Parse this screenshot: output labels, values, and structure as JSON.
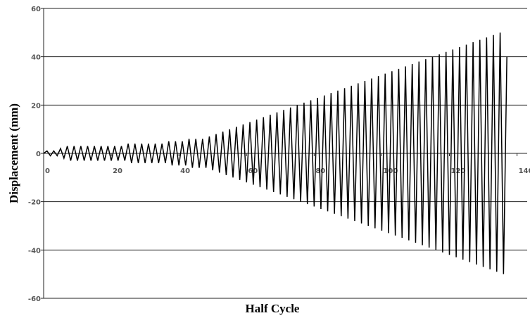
{
  "chart_data": {
    "type": "line",
    "xlabel": "Half Cycle",
    "ylabel": "Displacement (mm)",
    "x": [
      0,
      1,
      2,
      3,
      4,
      5,
      6,
      7,
      8,
      9,
      10,
      11,
      12,
      13,
      14,
      15,
      16,
      17,
      18,
      19,
      20,
      21,
      22,
      23,
      24,
      25,
      26,
      27,
      28,
      29,
      30,
      31,
      32,
      33,
      34,
      35,
      36,
      37,
      38,
      39,
      40,
      41,
      42,
      43,
      44,
      45,
      46,
      47,
      48,
      49,
      50,
      51,
      52,
      53,
      54,
      55,
      56,
      57,
      58,
      59,
      60,
      61,
      62,
      63,
      64,
      65,
      66,
      67,
      68,
      69,
      70,
      71,
      72,
      73,
      74,
      75,
      76,
      77,
      78,
      79,
      80,
      81,
      82,
      83,
      84,
      85,
      86,
      87,
      88,
      89,
      90,
      91,
      92,
      93,
      94,
      95,
      96,
      97,
      98,
      99,
      100,
      101,
      102,
      103,
      104,
      105,
      106,
      107,
      108,
      109,
      110,
      111,
      112,
      113,
      114,
      115,
      116,
      117,
      118,
      119,
      120,
      121,
      122,
      123,
      124,
      125,
      126,
      127,
      128,
      129,
      130,
      131,
      132,
      133,
      134,
      135,
      136,
      137
    ],
    "values": [
      0,
      1,
      -1,
      1,
      -1,
      2,
      -2,
      3,
      -3,
      3,
      -3,
      3,
      -3,
      3,
      -3,
      3,
      -3,
      3,
      -3,
      3,
      -3,
      3,
      -3,
      3,
      -3,
      4,
      -4,
      4,
      -4,
      4,
      -4,
      4,
      -4,
      4,
      -4,
      4,
      -4,
      5,
      -5,
      5,
      -5,
      5,
      -5,
      6,
      -6,
      6,
      -6,
      6,
      -6,
      7,
      -7,
      8,
      -8,
      9,
      -9,
      10,
      -10,
      11,
      -11,
      12,
      -12,
      13,
      -13,
      14,
      -14,
      15,
      -15,
      16,
      -16,
      17,
      -17,
      18,
      -18,
      19,
      -19,
      20,
      -20,
      21,
      -21,
      22,
      -22,
      23,
      -23,
      24,
      -24,
      25,
      -25,
      26,
      -26,
      27,
      -27,
      28,
      -28,
      29,
      -29,
      30,
      -30,
      31,
      -31,
      32,
      -32,
      33,
      -33,
      34,
      -34,
      35,
      -35,
      36,
      -36,
      37,
      -37,
      38,
      -38,
      39,
      -39,
      40,
      -40,
      41,
      -41,
      42,
      -42,
      43,
      -43,
      44,
      -44,
      45,
      -45,
      46,
      -46,
      47,
      -47,
      48,
      -48,
      49,
      -49,
      50,
      -50,
      40
    ],
    "color": "#000000",
    "xlim": [
      0,
      143
    ],
    "ylim": [
      -60,
      60
    ],
    "xticks": [
      0,
      20,
      40,
      60,
      80,
      100,
      120,
      140
    ],
    "yticks": [
      -60,
      -40,
      -20,
      0,
      20,
      40,
      60
    ],
    "grid": true
  }
}
